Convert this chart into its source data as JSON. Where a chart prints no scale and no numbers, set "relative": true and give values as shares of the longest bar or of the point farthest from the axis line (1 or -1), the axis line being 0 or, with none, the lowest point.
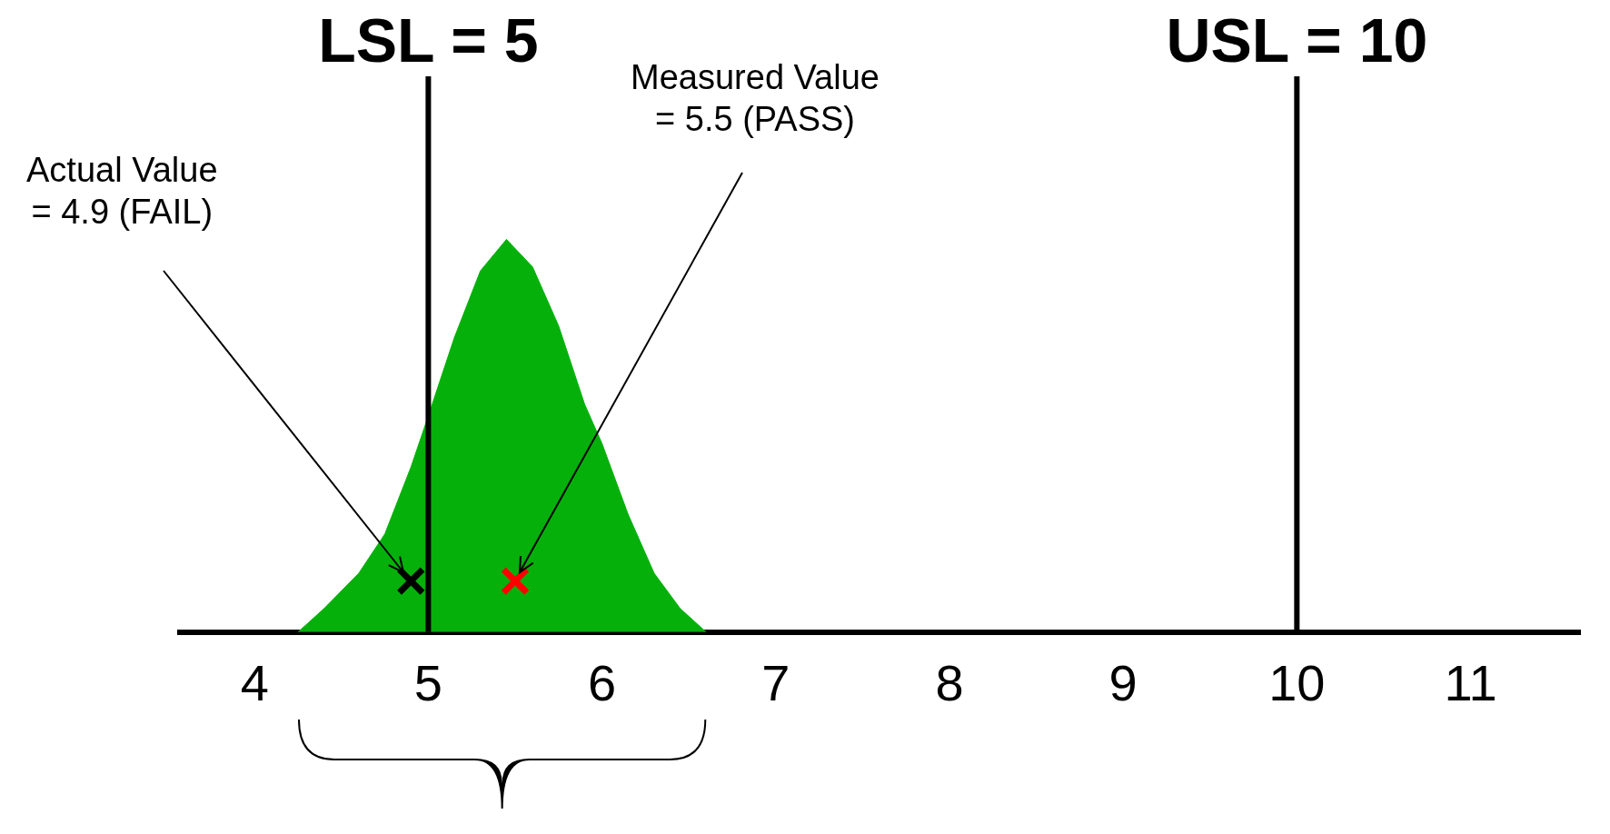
{
  "chart_data": {
    "type": "area",
    "relative": true,
    "xlim": [
      3.57,
      11.63
    ],
    "xticks": [
      4,
      5,
      6,
      7,
      8,
      9,
      10,
      11
    ],
    "series": [
      {
        "type": "area",
        "color": "#05b00b",
        "x": [
          4.25,
          4.4,
          4.6,
          4.75,
          4.9,
          5.0,
          5.15,
          5.3,
          5.45,
          5.6,
          5.75,
          5.9,
          6.0,
          6.15,
          6.3,
          6.45,
          6.6
        ],
        "values": [
          0,
          0.06,
          0.15,
          0.25,
          0.42,
          0.55,
          0.75,
          0.92,
          1,
          0.93,
          0.78,
          0.58,
          0.48,
          0.3,
          0.15,
          0.06,
          0
        ]
      },
      {
        "type": "scatter",
        "marker": "cross",
        "x": [
          4.9,
          5.5
        ],
        "values": [
          0.13,
          0.13
        ],
        "colors": [
          "#000000",
          "#ff0000"
        ]
      }
    ],
    "ref_lines": [
      {
        "axis": "x",
        "value": 5,
        "label": "LSL = 5",
        "color": "#000000"
      },
      {
        "axis": "x",
        "value": 10,
        "label": "USL = 10",
        "color": "#000000"
      }
    ],
    "annotations": [
      "Actual Value\n= 4.9 (FAIL)",
      "Measured Value\n= 5.5 (PASS)"
    ]
  }
}
